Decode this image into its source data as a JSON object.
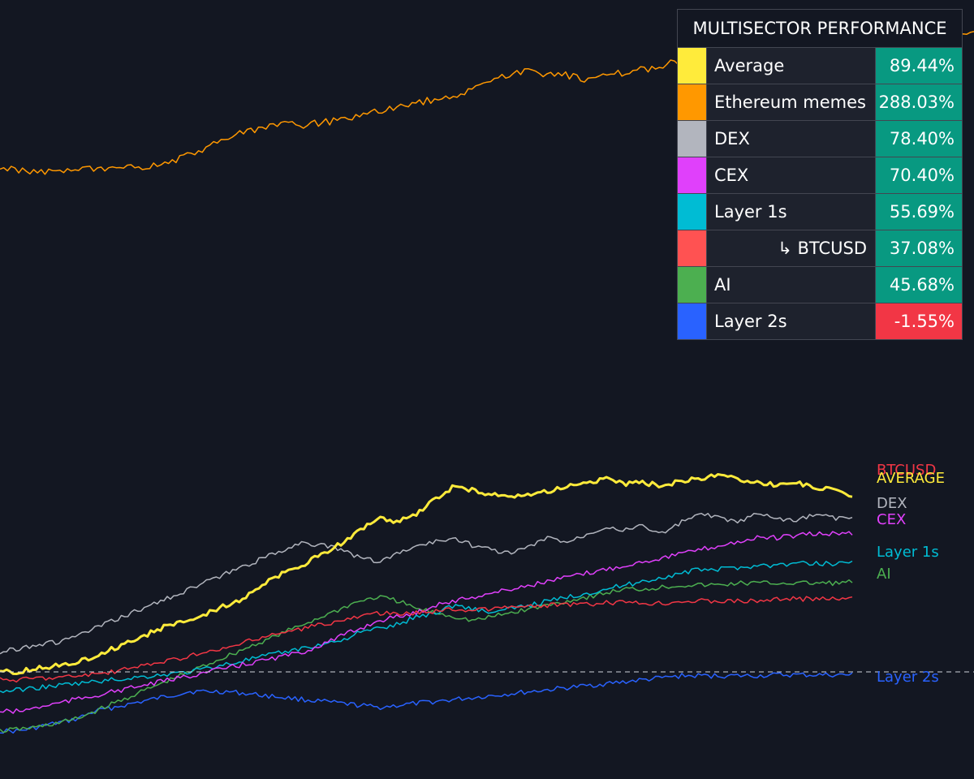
{
  "chart_data": {
    "type": "line",
    "title": "MULTISECTOR PERFORMANCE",
    "xlabel": "",
    "ylabel": "",
    "grid": false,
    "baseline_value": 0,
    "ylim": [
      -30,
      400
    ],
    "series": [
      {
        "name": "Ethereum memes",
        "color": "#ff9800",
        "final": 288.03,
        "values": [
          120,
          118,
          117,
          116,
          119,
          118,
          121,
          124,
          130,
          140,
          152,
          162,
          170,
          176,
          173,
          178,
          180,
          188,
          194,
          200,
          205,
          208,
          222,
          232,
          240,
          238,
          236,
          230,
          235,
          240,
          244,
          250,
          255,
          258,
          260,
          262,
          261,
          264,
          266,
          268,
          265,
          270,
          274,
          278,
          282,
          288.03
        ]
      },
      {
        "name": "Average",
        "color": "#ffeb3b",
        "final": 89.44,
        "values": [
          0,
          0,
          2,
          3,
          5,
          8,
          12,
          16,
          20,
          24,
          26,
          30,
          34,
          38,
          45,
          50,
          54,
          60,
          65,
          72,
          78,
          76,
          80,
          88,
          94,
          92,
          90,
          88,
          90,
          92,
          94,
          96,
          98,
          95,
          96,
          94,
          97,
          98,
          100,
          98,
          96,
          95,
          96,
          94,
          92,
          89.44
        ]
      },
      {
        "name": "BTCUSD",
        "color": "#f23645",
        "final": 37.08,
        "values": [
          -4,
          -4,
          -3,
          -3,
          -2,
          -1,
          0,
          2,
          4,
          6,
          8,
          10,
          12,
          15,
          18,
          20,
          22,
          24,
          26,
          28,
          30,
          29,
          30,
          31,
          32,
          31,
          32,
          33,
          33,
          34,
          34,
          34,
          35,
          35,
          35,
          35,
          36,
          36,
          36,
          36,
          36,
          37,
          37,
          37,
          37,
          37.08
        ]
      },
      {
        "name": "DEX",
        "color": "#b2b5be",
        "final": 78.4,
        "values": [
          10,
          12,
          14,
          15,
          18,
          22,
          26,
          30,
          34,
          38,
          42,
          46,
          50,
          54,
          58,
          62,
          66,
          64,
          62,
          58,
          56,
          60,
          64,
          66,
          68,
          64,
          62,
          60,
          64,
          68,
          66,
          70,
          74,
          72,
          74,
          70,
          76,
          80,
          78,
          76,
          80,
          78,
          76,
          80,
          78,
          78.4
        ]
      },
      {
        "name": "CEX",
        "color": "#e040fb",
        "final": 70.4,
        "values": [
          -20,
          -20,
          -18,
          -16,
          -14,
          -12,
          -10,
          -8,
          -6,
          -4,
          -2,
          0,
          2,
          4,
          6,
          8,
          10,
          14,
          18,
          22,
          26,
          28,
          30,
          34,
          36,
          38,
          40,
          42,
          44,
          46,
          48,
          50,
          52,
          54,
          56,
          58,
          60,
          62,
          64,
          66,
          68,
          68,
          69,
          70,
          70,
          70.4
        ]
      },
      {
        "name": "Layer 1s",
        "color": "#00bcd4",
        "final": 55.69,
        "values": [
          -10,
          -9,
          -8,
          -7,
          -6,
          -5,
          -4,
          -3,
          -2,
          -1,
          0,
          2,
          4,
          6,
          8,
          10,
          12,
          14,
          16,
          20,
          22,
          24,
          28,
          30,
          34,
          32,
          30,
          32,
          34,
          36,
          38,
          40,
          42,
          44,
          46,
          48,
          50,
          52,
          52,
          53,
          54,
          54,
          55,
          55,
          55,
          55.69
        ]
      },
      {
        "name": "AI",
        "color": "#4caf50",
        "final": 45.68,
        "values": [
          -30,
          -29,
          -28,
          -26,
          -24,
          -20,
          -16,
          -12,
          -8,
          -4,
          0,
          4,
          8,
          12,
          16,
          20,
          24,
          28,
          32,
          36,
          38,
          36,
          32,
          30,
          28,
          26,
          28,
          30,
          32,
          34,
          36,
          38,
          40,
          42,
          42,
          43,
          44,
          44,
          44,
          45,
          45,
          45,
          45,
          45,
          45,
          45.68
        ]
      },
      {
        "name": "Layer 2s",
        "color": "#2962ff",
        "final": -1.55,
        "values": [
          -30,
          -30,
          -28,
          -26,
          -24,
          -20,
          -18,
          -16,
          -14,
          -12,
          -10,
          -10,
          -10,
          -11,
          -12,
          -13,
          -14,
          -15,
          -16,
          -17,
          -18,
          -17,
          -16,
          -15,
          -14,
          -13,
          -12,
          -11,
          -10,
          -9,
          -8,
          -7,
          -6,
          -5,
          -4,
          -3,
          -2,
          -2,
          -2,
          -2,
          -2,
          -1.55,
          -1.55,
          -1.55,
          -1.55,
          -1.55
        ]
      }
    ]
  },
  "table": {
    "title": "MULTISECTOR PERFORMANCE",
    "rows": [
      {
        "swatch": "#ffeb3b",
        "name": "Average",
        "value": "89.44%",
        "value_bg": "#089981",
        "indent": false
      },
      {
        "swatch": "#ff9800",
        "name": "Ethereum memes",
        "value": "288.03%",
        "value_bg": "#089981",
        "indent": false
      },
      {
        "swatch": "#b2b5be",
        "name": "DEX",
        "value": "78.40%",
        "value_bg": "#089981",
        "indent": false
      },
      {
        "swatch": "#e040fb",
        "name": "CEX",
        "value": "70.40%",
        "value_bg": "#089981",
        "indent": false
      },
      {
        "swatch": "#00bcd4",
        "name": "Layer 1s",
        "value": "55.69%",
        "value_bg": "#089981",
        "indent": false
      },
      {
        "swatch": "#ff5252",
        "name": "↳ BTCUSD",
        "value": "37.08%",
        "value_bg": "#089981",
        "indent": true
      },
      {
        "swatch": "#4caf50",
        "name": "AI",
        "value": "45.68%",
        "value_bg": "#089981",
        "indent": false
      },
      {
        "swatch": "#2962ff",
        "name": "Layer 2s",
        "value": "-1.55%",
        "value_bg": "#f23645",
        "indent": false
      }
    ]
  },
  "series_labels": [
    {
      "key": "btcusd",
      "text": "BTCUSD",
      "color": "#f23645"
    },
    {
      "key": "average",
      "text": "AVERAGE",
      "color": "#ffeb3b"
    },
    {
      "key": "dex",
      "text": "DEX",
      "color": "#b2b5be"
    },
    {
      "key": "cex",
      "text": "CEX",
      "color": "#e040fb"
    },
    {
      "key": "layer1s",
      "text": "Layer 1s",
      "color": "#00bcd4"
    },
    {
      "key": "ai",
      "text": "AI",
      "color": "#4caf50"
    },
    {
      "key": "layer2s",
      "text": "Layer 2s",
      "color": "#2962ff"
    }
  ],
  "colors": {
    "background": "#131722",
    "table_bg": "#1e222d",
    "border": "#434651",
    "positive": "#089981",
    "negative": "#f23645",
    "baseline": "#d1d4dc"
  }
}
